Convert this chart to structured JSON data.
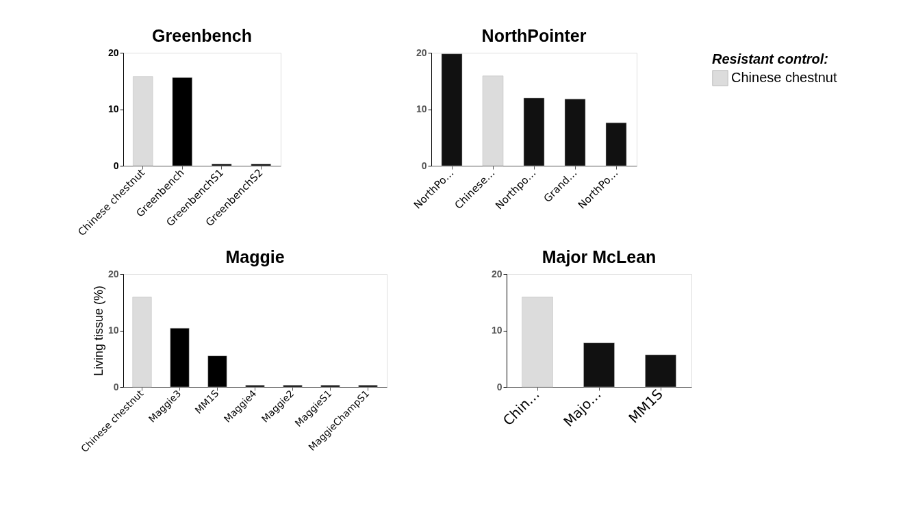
{
  "chart_data": [
    {
      "type": "bar",
      "title": "Greenbench",
      "categories": [
        "Chinese chestnut",
        "Greenbench",
        "GreenbenchS1",
        "GreenbenchS2"
      ],
      "ylim": [
        0,
        20
      ],
      "yticks": [
        0,
        10,
        20
      ],
      "grid": false,
      "series": [
        {
          "color": "#dcdcdc",
          "values": [
            15.8,
            null,
            null,
            null
          ]
        },
        {
          "color": "#000000",
          "values": [
            null,
            15.6,
            0.3,
            0.3
          ]
        }
      ]
    },
    {
      "type": "bar",
      "title": "NorthPointer",
      "categories": [
        "NorthPo…",
        "Chinese…",
        "Northpo…",
        "Grand…",
        "NorthPo…"
      ],
      "ylim": [
        0,
        20
      ],
      "yticks": [
        0,
        10,
        20
      ],
      "grid": false,
      "legend": "right",
      "legend_title": "Resistant control:",
      "series": [
        {
          "name": "Chinese chestnut",
          "color": "#dcdcdc",
          "values": [
            null,
            15.9,
            null,
            null,
            null
          ]
        },
        {
          "color": "#111111",
          "values": [
            19.8,
            null,
            12.0,
            11.8,
            7.6
          ]
        }
      ]
    },
    {
      "type": "bar",
      "title": "Maggie",
      "ylabel": "Living tissue (%)",
      "categories": [
        "Chinese chestnut",
        "Maggie3",
        "MM1S",
        "Maggie4",
        "Maggie2",
        "MaggieS1",
        "MaggieChampS1"
      ],
      "ylim": [
        0,
        20
      ],
      "yticks": [
        0,
        10,
        20
      ],
      "grid": false,
      "series": [
        {
          "color": "#dcdcdc",
          "values": [
            15.9,
            null,
            null,
            null,
            null,
            null,
            null
          ]
        },
        {
          "color": "#000000",
          "values": [
            null,
            10.4,
            5.5,
            0.3,
            0.3,
            0.3,
            0.3
          ]
        }
      ]
    },
    {
      "type": "bar",
      "title": "Major McLean",
      "categories": [
        "Chin…",
        "Majo…",
        "MM1S"
      ],
      "ylim": [
        0,
        20
      ],
      "yticks": [
        0,
        10,
        20
      ],
      "grid": false,
      "series": [
        {
          "color": "#dcdcdc",
          "values": [
            15.9,
            null,
            null
          ]
        },
        {
          "color": "#111111",
          "values": [
            null,
            7.8,
            5.7
          ]
        }
      ]
    }
  ]
}
